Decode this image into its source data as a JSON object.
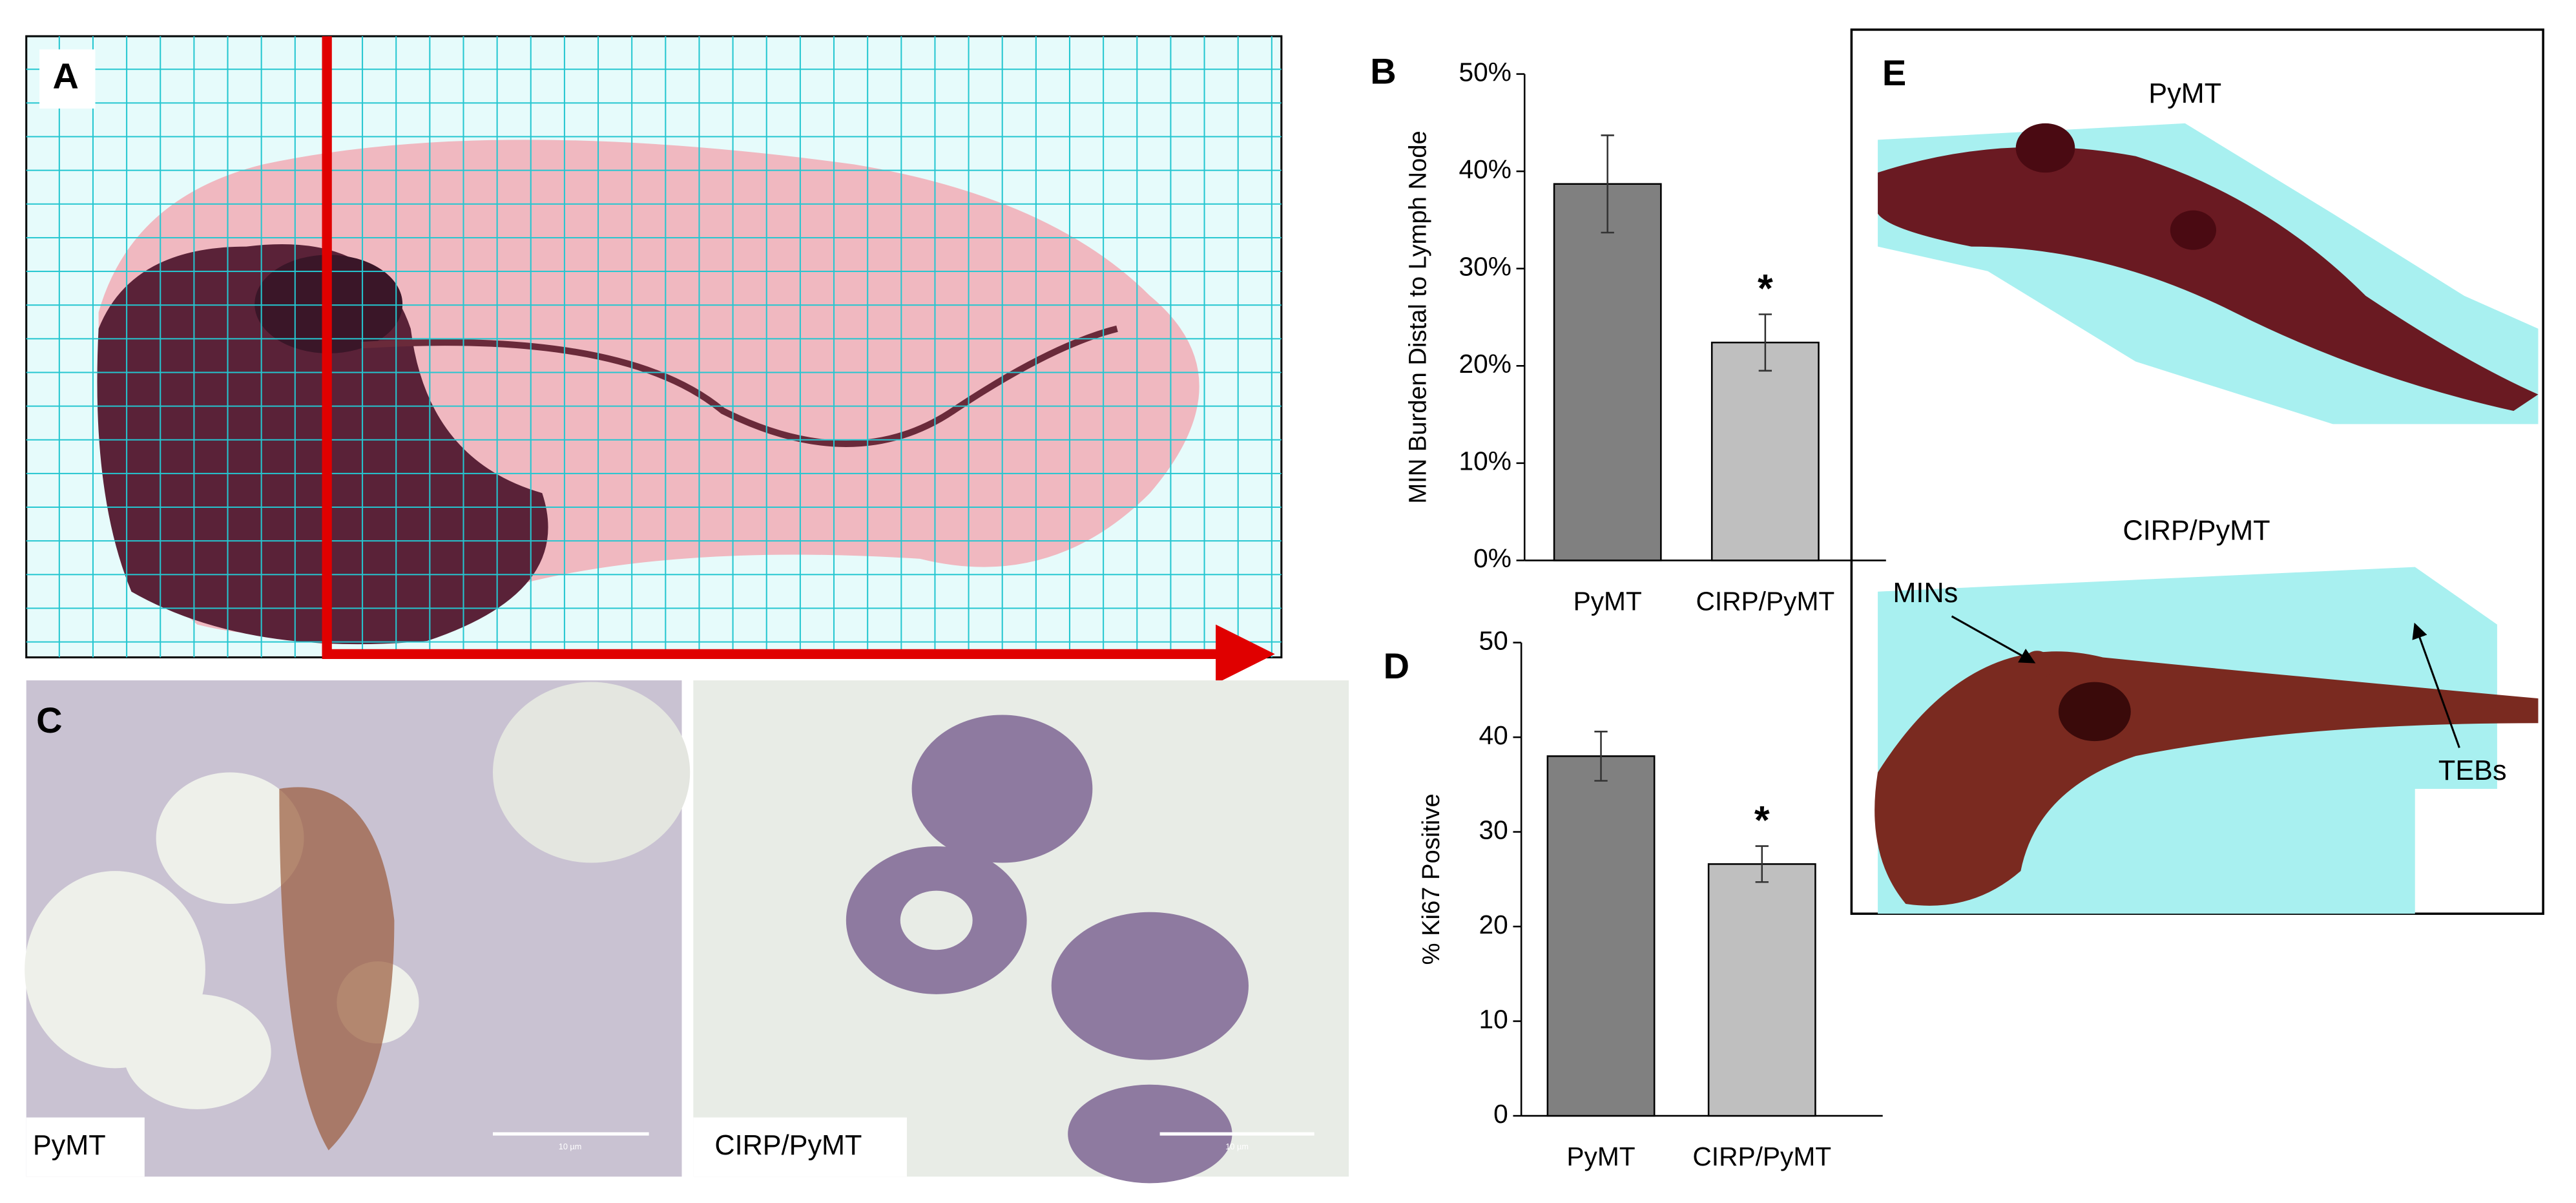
{
  "panel_labels": {
    "a": "A",
    "b": "B",
    "c": "C",
    "d": "D",
    "e": "E"
  },
  "panel_c": {
    "left_label": "PyMT",
    "right_label": "CIRP/PyMT",
    "scale_bar": "10 µm"
  },
  "panel_e": {
    "top_label": "PyMT",
    "bottom_label": "CIRP/PyMT",
    "arrow_left": "MINs",
    "arrow_right": "TEBs"
  },
  "chart_data": [
    {
      "type": "bar",
      "y_label": "MIN Burden Distal to Lymph Node",
      "categories": [
        "PyMT",
        "CIRP/PyMT"
      ],
      "values": [
        38.7,
        22.4
      ],
      "errors": [
        5.0,
        2.9
      ],
      "colors": [
        "#808080",
        "#bfbfbf"
      ],
      "annotations": [
        null,
        "*"
      ],
      "ylim": [
        0,
        50
      ],
      "yticks": [
        {
          "value": 0,
          "label": "0%"
        },
        {
          "value": 10,
          "label": "10%"
        },
        {
          "value": 20,
          "label": "20%"
        },
        {
          "value": 30,
          "label": "30%"
        },
        {
          "value": 40,
          "label": "40%"
        },
        {
          "value": 50,
          "label": "50%"
        }
      ]
    },
    {
      "type": "bar",
      "y_label": "% Ki67 Positive",
      "categories": [
        "PyMT",
        "CIRP/PyMT"
      ],
      "values": [
        38.0,
        26.6
      ],
      "errors": [
        2.6,
        1.9
      ],
      "colors": [
        "#808080",
        "#bfbfbf"
      ],
      "annotations": [
        null,
        "*"
      ],
      "ylim": [
        0,
        50
      ],
      "yticks": [
        0,
        10,
        20,
        30,
        40,
        50
      ]
    }
  ]
}
